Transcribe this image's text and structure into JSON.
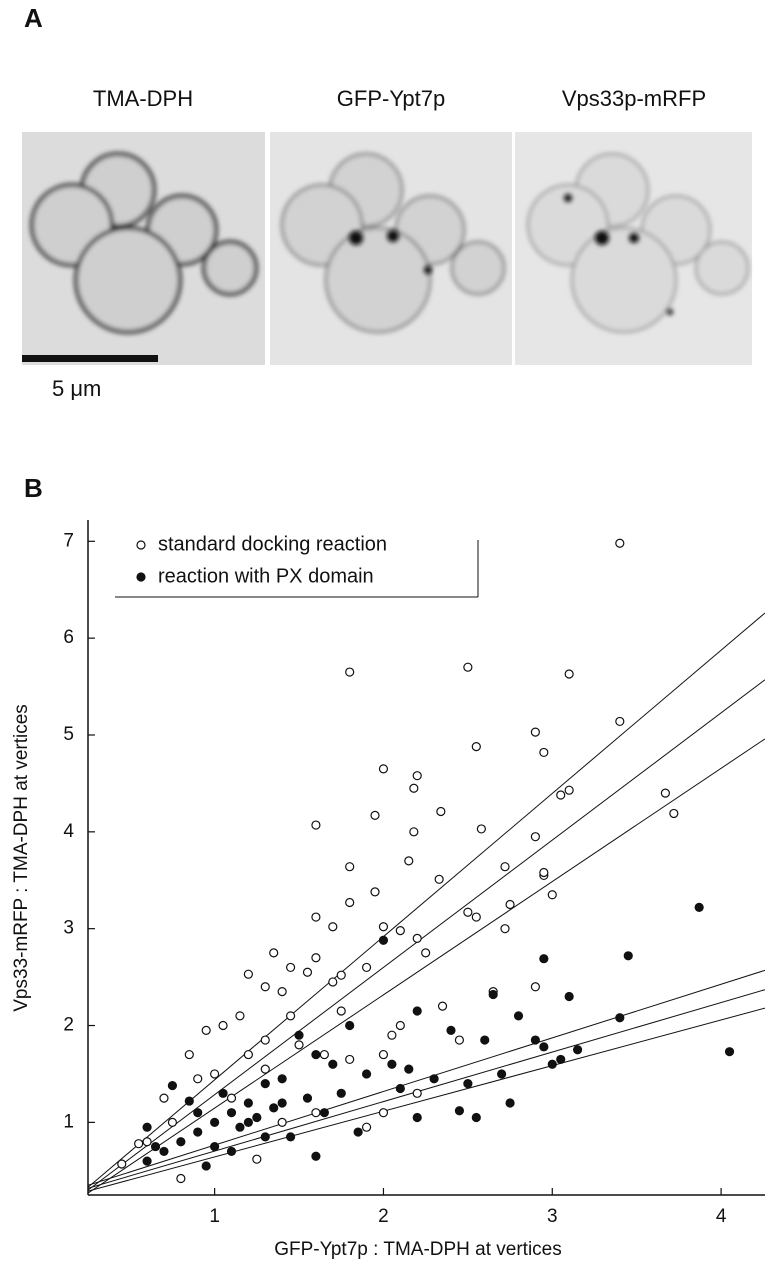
{
  "panel_a": {
    "label": "A",
    "images": [
      "TMA-DPH",
      "GFP-Ypt7p",
      "Vps33p-mRFP"
    ],
    "scale_label": "5 μm"
  },
  "panel_b": {
    "label": "B"
  },
  "chart_data": {
    "type": "scatter",
    "x_label": "GFP-Ypt7p : TMA-DPH at vertices",
    "y_label": "Vps33-mRFP : TMA-DPH at vertices",
    "xlim": [
      0.25,
      4.26
    ],
    "ylim": [
      0.25,
      7.22
    ],
    "xticks": [
      1,
      2,
      3,
      4
    ],
    "yticks": [
      1,
      2,
      3,
      4,
      5,
      6,
      7
    ],
    "legend": "top-left",
    "series": [
      {
        "name": "standard docking reaction",
        "color": "#111111",
        "marker": "open",
        "x": [
          3.4,
          1.8,
          2.5,
          3.1,
          2.55,
          3.4,
          2.9,
          2.95,
          2.0,
          2.2,
          1.6,
          2.18,
          2.34,
          1.95,
          2.18,
          3.05,
          3.1,
          3.67,
          3.72,
          2.58,
          1.8,
          2.15,
          2.33,
          2.72,
          2.9,
          2.95,
          2.95,
          2.75,
          1.8,
          1.95,
          2.0,
          2.1,
          2.5,
          2.55,
          3.0,
          2.72,
          1.6,
          1.7,
          1.35,
          1.45,
          1.55,
          1.6,
          1.7,
          1.75,
          1.2,
          1.3,
          1.4,
          1.9,
          2.2,
          2.25,
          2.65,
          2.35,
          1.05,
          1.15,
          0.95,
          0.85,
          0.9,
          1.0,
          1.2,
          1.3,
          1.5,
          1.65,
          1.8,
          2.0,
          2.05,
          2.1,
          2.45,
          2.9,
          0.55,
          0.6,
          0.45,
          0.75,
          0.8,
          0.7,
          1.1,
          1.25,
          1.4,
          1.6,
          1.9,
          2.0,
          2.2,
          1.3,
          1.75,
          1.45
        ],
        "values": [
          6.98,
          5.65,
          5.7,
          5.63,
          4.88,
          5.14,
          5.03,
          4.82,
          4.65,
          4.58,
          4.07,
          4.45,
          4.21,
          4.17,
          4.0,
          4.38,
          4.43,
          4.4,
          4.19,
          4.03,
          3.64,
          3.7,
          3.51,
          3.64,
          3.95,
          3.55,
          3.58,
          3.25,
          3.27,
          3.38,
          3.02,
          2.98,
          3.17,
          3.12,
          3.35,
          3.0,
          3.12,
          3.02,
          2.75,
          2.6,
          2.55,
          2.7,
          2.45,
          2.52,
          2.53,
          2.4,
          2.35,
          2.6,
          2.9,
          2.75,
          2.35,
          2.2,
          2.0,
          2.1,
          1.95,
          1.7,
          1.45,
          1.5,
          1.7,
          1.85,
          1.8,
          1.7,
          1.65,
          1.7,
          1.9,
          2.0,
          1.85,
          2.4,
          0.78,
          0.8,
          0.57,
          1.0,
          0.42,
          1.25,
          1.25,
          0.62,
          1.0,
          1.1,
          0.95,
          1.1,
          1.3,
          1.55,
          2.15,
          2.1
        ]
      },
      {
        "name": "reaction with PX domain",
        "color": "#111111",
        "marker": "filled",
        "x": [
          3.87,
          3.45,
          2.95,
          3.1,
          3.4,
          4.05,
          2.0,
          2.65,
          1.8,
          2.2,
          2.4,
          2.6,
          2.8,
          2.9,
          3.0,
          3.05,
          3.15,
          2.95,
          2.75,
          2.55,
          2.45,
          2.2,
          1.85,
          1.5,
          1.6,
          1.7,
          1.3,
          1.4,
          1.2,
          1.1,
          1.0,
          0.9,
          0.8,
          0.7,
          0.6,
          0.65,
          0.75,
          0.85,
          0.95,
          1.05,
          1.15,
          1.25,
          1.35,
          1.45,
          1.55,
          1.65,
          1.75,
          1.9,
          2.05,
          2.15,
          2.3,
          2.5,
          2.7,
          1.0,
          0.9,
          1.1,
          1.3,
          1.6,
          0.6,
          2.1,
          1.2,
          1.4
        ],
        "values": [
          3.22,
          2.72,
          2.69,
          2.3,
          2.08,
          1.73,
          2.88,
          2.32,
          2.0,
          2.15,
          1.95,
          1.85,
          2.1,
          1.85,
          1.6,
          1.65,
          1.75,
          1.78,
          1.2,
          1.05,
          1.12,
          1.05,
          0.9,
          1.9,
          1.7,
          1.6,
          1.4,
          1.45,
          1.2,
          1.1,
          1.0,
          0.9,
          0.8,
          0.7,
          0.6,
          0.75,
          1.38,
          1.22,
          0.55,
          1.3,
          0.95,
          1.05,
          1.15,
          0.85,
          1.25,
          1.1,
          1.3,
          1.5,
          1.6,
          1.55,
          1.45,
          1.4,
          1.5,
          0.75,
          1.1,
          0.7,
          0.85,
          0.65,
          0.95,
          1.35,
          1.0,
          1.2
        ]
      }
    ],
    "fit_lines": [
      {
        "x": [
          0.25,
          4.26
        ],
        "y": [
          0.33,
          6.26
        ]
      },
      {
        "x": [
          0.25,
          4.26
        ],
        "y": [
          0.3,
          5.57
        ]
      },
      {
        "x": [
          0.25,
          4.26
        ],
        "y": [
          0.27,
          4.96
        ]
      },
      {
        "x": [
          0.25,
          4.26
        ],
        "y": [
          0.35,
          2.57
        ]
      },
      {
        "x": [
          0.25,
          4.26
        ],
        "y": [
          0.32,
          2.37
        ]
      },
      {
        "x": [
          0.25,
          4.26
        ],
        "y": [
          0.29,
          2.18
        ]
      }
    ]
  }
}
